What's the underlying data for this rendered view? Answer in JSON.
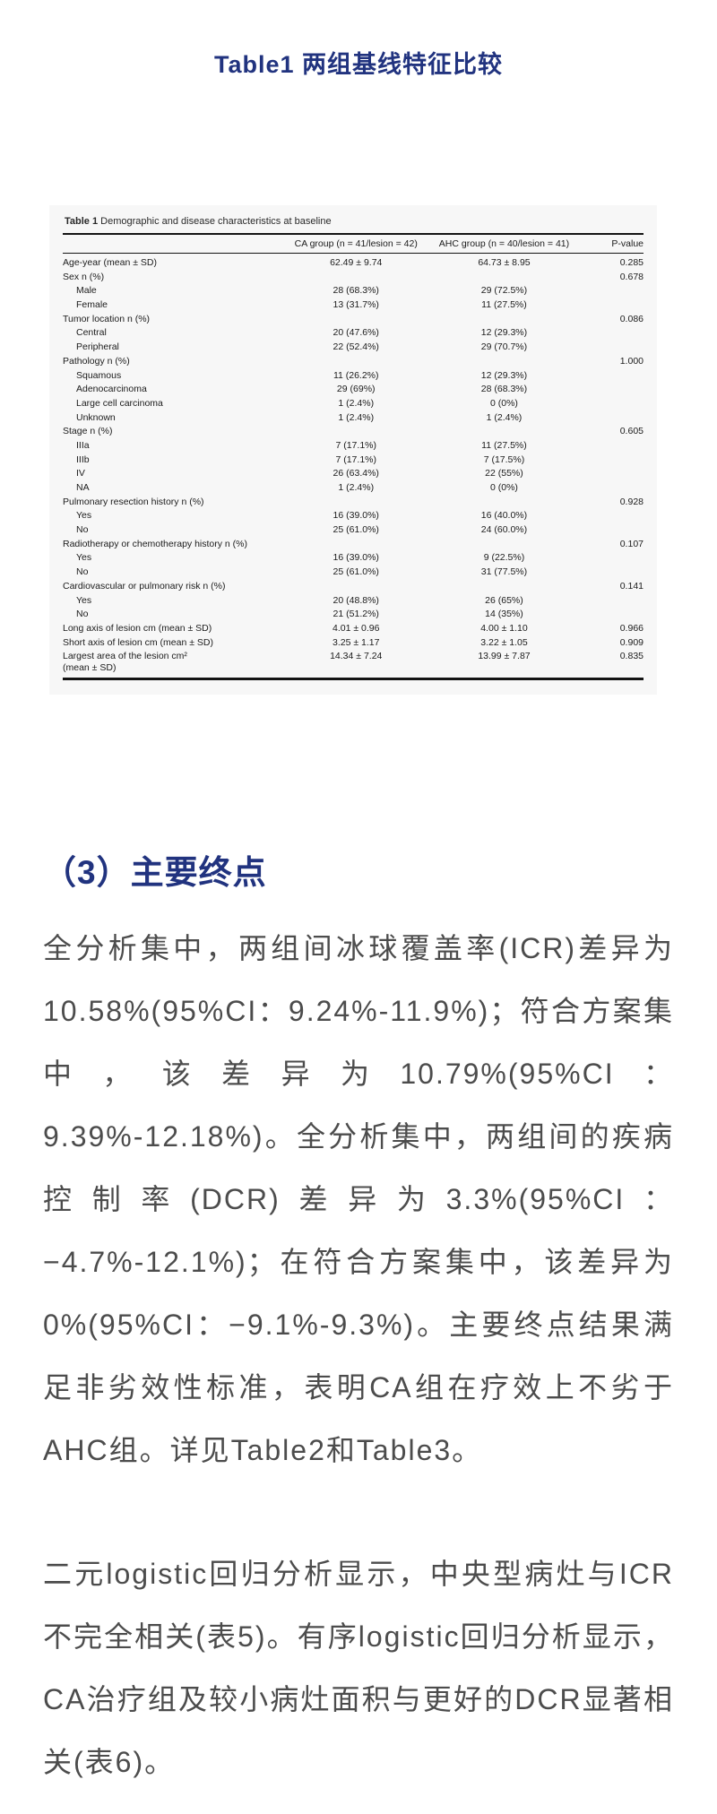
{
  "page": {
    "title": "Table1 两组基线特征比较"
  },
  "table_figure": {
    "caption_label": "Table 1",
    "caption_text": "Demographic and disease characteristics at baseline",
    "columns": {
      "label": "",
      "ca": "CA group (n = 41/lesion = 42)",
      "ahc": "AHC group (n = 40/lesion = 41)",
      "p": "P-value"
    },
    "rows": [
      {
        "label": "Age-year (mean ± SD)",
        "indent": false,
        "ca": "62.49 ± 9.74",
        "ahc": "64.73 ± 8.95",
        "p": "0.285"
      },
      {
        "label": "Sex n (%)",
        "indent": false,
        "ca": "",
        "ahc": "",
        "p": "0.678"
      },
      {
        "label": "Male",
        "indent": true,
        "ca": "28 (68.3%)",
        "ahc": "29 (72.5%)",
        "p": ""
      },
      {
        "label": "Female",
        "indent": true,
        "ca": "13 (31.7%)",
        "ahc": "11 (27.5%)",
        "p": ""
      },
      {
        "label": "Tumor location n (%)",
        "indent": false,
        "ca": "",
        "ahc": "",
        "p": "0.086"
      },
      {
        "label": "Central",
        "indent": true,
        "ca": "20 (47.6%)",
        "ahc": "12 (29.3%)",
        "p": ""
      },
      {
        "label": "Peripheral",
        "indent": true,
        "ca": "22 (52.4%)",
        "ahc": "29 (70.7%)",
        "p": ""
      },
      {
        "label": "Pathology n (%)",
        "indent": false,
        "ca": "",
        "ahc": "",
        "p": "1.000"
      },
      {
        "label": "Squamous",
        "indent": true,
        "ca": "11 (26.2%)",
        "ahc": "12 (29.3%)",
        "p": ""
      },
      {
        "label": "Adenocarcinoma",
        "indent": true,
        "ca": "29 (69%)",
        "ahc": "28 (68.3%)",
        "p": ""
      },
      {
        "label": "Large cell carcinoma",
        "indent": true,
        "ca": "1 (2.4%)",
        "ahc": "0 (0%)",
        "p": ""
      },
      {
        "label": "Unknown",
        "indent": true,
        "ca": "1 (2.4%)",
        "ahc": "1 (2.4%)",
        "p": ""
      },
      {
        "label": "Stage n (%)",
        "indent": false,
        "ca": "",
        "ahc": "",
        "p": "0.605"
      },
      {
        "label": "IIIa",
        "indent": true,
        "ca": "7 (17.1%)",
        "ahc": "11 (27.5%)",
        "p": ""
      },
      {
        "label": "IIIb",
        "indent": true,
        "ca": "7 (17.1%)",
        "ahc": "7 (17.5%)",
        "p": ""
      },
      {
        "label": "IV",
        "indent": true,
        "ca": "26 (63.4%)",
        "ahc": "22 (55%)",
        "p": ""
      },
      {
        "label": "NA",
        "indent": true,
        "ca": "1 (2.4%)",
        "ahc": "0 (0%)",
        "p": ""
      },
      {
        "label": "Pulmonary resection history n (%)",
        "indent": false,
        "ca": "",
        "ahc": "",
        "p": "0.928"
      },
      {
        "label": "Yes",
        "indent": true,
        "ca": "16 (39.0%)",
        "ahc": "16 (40.0%)",
        "p": ""
      },
      {
        "label": "No",
        "indent": true,
        "ca": "25 (61.0%)",
        "ahc": "24 (60.0%)",
        "p": ""
      },
      {
        "label": "Radiotherapy or chemotherapy history n (%)",
        "indent": false,
        "ca": "",
        "ahc": "",
        "p": "0.107"
      },
      {
        "label": "Yes",
        "indent": true,
        "ca": "16 (39.0%)",
        "ahc": "9 (22.5%)",
        "p": ""
      },
      {
        "label": "No",
        "indent": true,
        "ca": "25 (61.0%)",
        "ahc": "31 (77.5%)",
        "p": ""
      },
      {
        "label": "Cardiovascular or pulmonary risk n (%)",
        "indent": false,
        "ca": "",
        "ahc": "",
        "p": "0.141"
      },
      {
        "label": "Yes",
        "indent": true,
        "ca": "20 (48.8%)",
        "ahc": "26 (65%)",
        "p": ""
      },
      {
        "label": "No",
        "indent": true,
        "ca": "21 (51.2%)",
        "ahc": "14 (35%)",
        "p": ""
      },
      {
        "label": "Long axis of lesion cm (mean ± SD)",
        "indent": false,
        "ca": "4.01 ± 0.96",
        "ahc": "4.00 ± 1.10",
        "p": "0.966"
      },
      {
        "label": "Short axis of lesion cm (mean ± SD)",
        "indent": false,
        "ca": "3.25 ± 1.17",
        "ahc": "3.22 ± 1.05",
        "p": "0.909"
      },
      {
        "label": "Largest area of the lesion cm²\n(mean ± SD)",
        "indent": false,
        "ca": "14.34 ± 7.24",
        "ahc": "13.99 ± 7.87",
        "p": "0.835"
      }
    ]
  },
  "section": {
    "heading": "（3）主要终点",
    "paragraph1": "全分析集中，两组间冰球覆盖率(ICR)差异为10.58%(95%CI：9.24%-11.9%)；符合方案集中，该差异为10.79%(95%CI：9.39%-12.18%)。全分析集中，两组间的疾病控制率(DCR)差异为3.3%(95%CI：−4.7%-12.1%)；在符合方案集中，该差异为0%(95%CI：−9.1%-9.3%)。主要终点结果满足非劣效性标准，表明CA组在疗效上不劣于AHC组。详见Table2和Table3。",
    "paragraph2": "二元logistic回归分析显示，中央型病灶与ICR不完全相关(表5)。有序logistic回归分析显示，CA治疗组及较小病灶面积与更好的DCR显著相关(表6)。"
  },
  "colors": {
    "accent_navy": "#21337f",
    "body_text": "#4c4c4c",
    "table_background": "#f7f7f7",
    "table_rule": "#141414"
  }
}
